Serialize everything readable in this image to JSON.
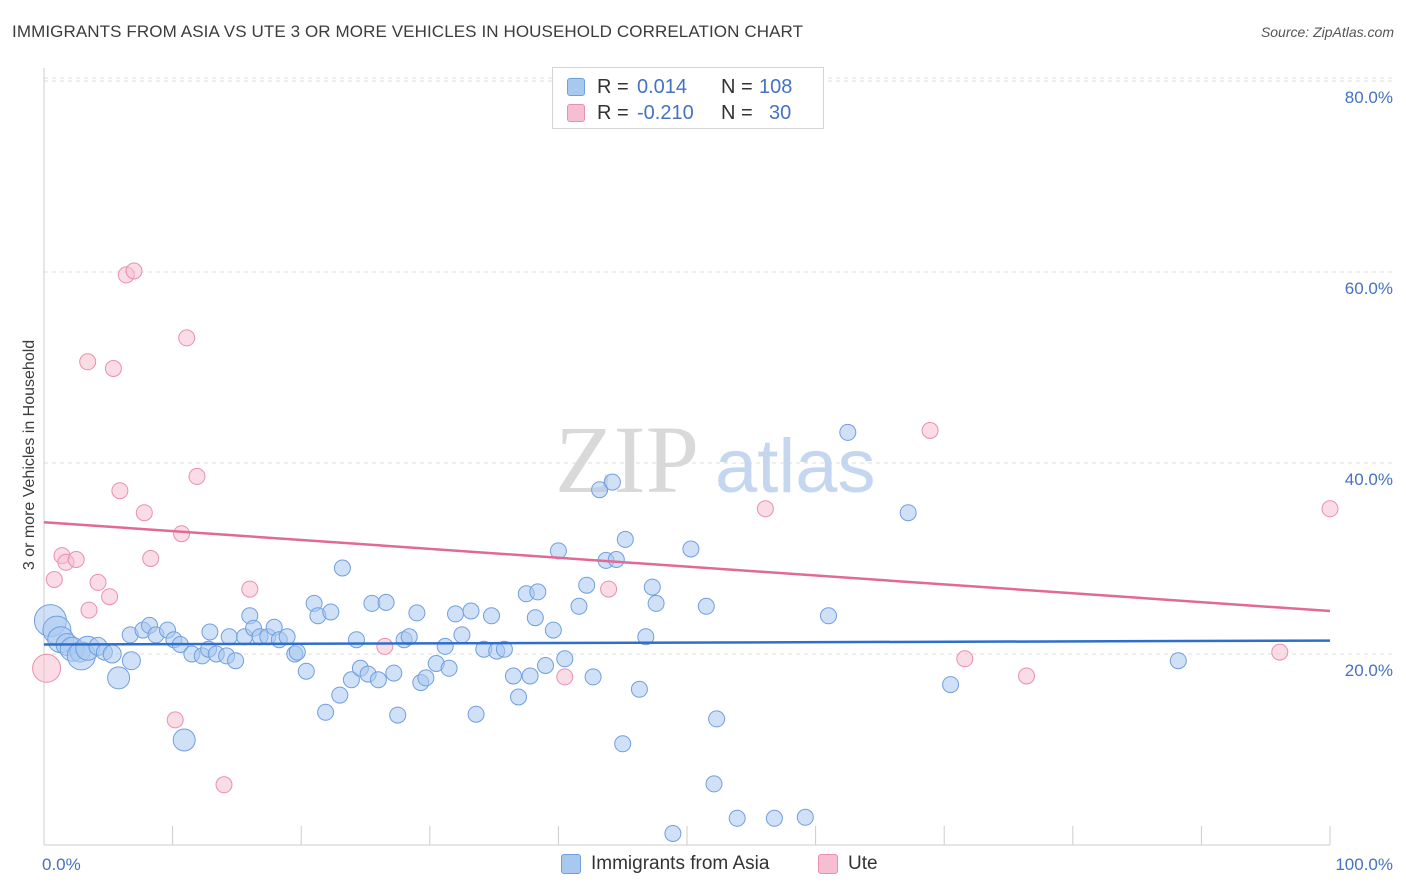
{
  "title": "IMMIGRANTS FROM ASIA VS UTE 3 OR MORE VEHICLES IN HOUSEHOLD CORRELATION CHART",
  "source": "Source: ZipAtlas.com",
  "watermark": {
    "zip": "ZIP",
    "atlas": "atlas"
  },
  "legend": {
    "rows": [
      {
        "r_label": "R =",
        "r_value": "0.014",
        "n_label": "N =",
        "n_value": "108"
      },
      {
        "r_label": "R =",
        "r_value": "-0.210",
        "n_label": "N =",
        "n_value": "30"
      }
    ]
  },
  "bottom_legend": {
    "series1": "Immigrants from Asia",
    "series2": "Ute"
  },
  "colors": {
    "blue_fill": "#a9c8f0",
    "blue_stroke": "#6f9fe0",
    "blue_line": "#2f6fcc",
    "pink_fill": "#f6bfd0",
    "pink_stroke": "#ea8fb0",
    "pink_line": "#e06a95",
    "tick_text": "#4472c4",
    "grid": "#dddddd"
  },
  "chart_data": {
    "type": "scatter",
    "title": "IMMIGRANTS FROM ASIA VS UTE 3 OR MORE VEHICLES IN HOUSEHOLD CORRELATION CHART",
    "xlabel": "",
    "ylabel": "3 or more Vehicles in Household",
    "xlim": [
      0,
      100
    ],
    "ylim": [
      0,
      85
    ],
    "x_ticks": [
      0,
      100
    ],
    "x_tick_labels": [
      "0.0%",
      "100.0%"
    ],
    "y_ticks": [
      20,
      40,
      60,
      80
    ],
    "y_tick_labels": [
      "20.0%",
      "40.0%",
      "60.0%",
      "80.0%"
    ],
    "grid": "horizontal dashed",
    "legend_position": "top-center",
    "series": [
      {
        "name": "Immigrants from Asia",
        "r": 0.014,
        "n": 108,
        "trend": [
          [
            0,
            21.0
          ],
          [
            100,
            21.4
          ]
        ],
        "points": [
          [
            0.5,
            23.5,
            16
          ],
          [
            1.0,
            22.5,
            14
          ],
          [
            1.3,
            21.5,
            13
          ],
          [
            1.8,
            21.0,
            11
          ],
          [
            2.2,
            20.5,
            12
          ],
          [
            2.8,
            20.2,
            10
          ],
          [
            2.9,
            19.8,
            14
          ],
          [
            3.4,
            20.6,
            12
          ],
          [
            4.2,
            20.8,
            9
          ],
          [
            4.7,
            20.2,
            8
          ],
          [
            5.3,
            20.0,
            9
          ],
          [
            5.8,
            17.5,
            11
          ],
          [
            6.8,
            19.3,
            9
          ],
          [
            6.7,
            22.0,
            8
          ],
          [
            7.7,
            22.5,
            8
          ],
          [
            8.2,
            23.0,
            8
          ],
          [
            8.7,
            22.0,
            8
          ],
          [
            9.6,
            22.5,
            8
          ],
          [
            10.1,
            21.5,
            8
          ],
          [
            10.6,
            21.0,
            8
          ],
          [
            10.9,
            11.0,
            11
          ],
          [
            11.5,
            20.0,
            8
          ],
          [
            12.3,
            19.8,
            8
          ],
          [
            12.8,
            20.5,
            8
          ],
          [
            12.9,
            22.3,
            8
          ],
          [
            13.4,
            20.0,
            8
          ],
          [
            14.2,
            19.8,
            8
          ],
          [
            14.4,
            21.8,
            8
          ],
          [
            14.9,
            19.3,
            8
          ],
          [
            15.6,
            21.8,
            8
          ],
          [
            16.0,
            24.0,
            8
          ],
          [
            16.3,
            22.7,
            8
          ],
          [
            16.8,
            21.8,
            8
          ],
          [
            17.4,
            21.8,
            8
          ],
          [
            17.9,
            22.8,
            8
          ],
          [
            18.3,
            21.5,
            8
          ],
          [
            18.9,
            21.8,
            8
          ],
          [
            19.5,
            20.0,
            8
          ],
          [
            19.7,
            20.2,
            8
          ],
          [
            20.4,
            18.2,
            8
          ],
          [
            21.0,
            25.3,
            8
          ],
          [
            21.3,
            24.0,
            8
          ],
          [
            21.9,
            13.9,
            8
          ],
          [
            22.3,
            24.4,
            8
          ],
          [
            23.0,
            15.7,
            8
          ],
          [
            23.2,
            29.0,
            8
          ],
          [
            23.9,
            17.3,
            8
          ],
          [
            24.3,
            21.5,
            8
          ],
          [
            24.6,
            18.5,
            8
          ],
          [
            25.2,
            17.9,
            8
          ],
          [
            25.5,
            25.3,
            8
          ],
          [
            26.0,
            17.3,
            8
          ],
          [
            26.6,
            25.4,
            8
          ],
          [
            27.2,
            18.0,
            8
          ],
          [
            27.5,
            13.6,
            8
          ],
          [
            28.0,
            21.5,
            8
          ],
          [
            28.4,
            21.8,
            8
          ],
          [
            29.0,
            24.3,
            8
          ],
          [
            29.3,
            17.0,
            8
          ],
          [
            29.7,
            17.5,
            8
          ],
          [
            30.5,
            19.0,
            8
          ],
          [
            31.2,
            20.8,
            8
          ],
          [
            31.5,
            18.5,
            8
          ],
          [
            32.0,
            24.2,
            8
          ],
          [
            32.5,
            22.0,
            8
          ],
          [
            33.2,
            24.5,
            8
          ],
          [
            33.6,
            13.7,
            8
          ],
          [
            34.2,
            20.5,
            8
          ],
          [
            34.8,
            24.0,
            8
          ],
          [
            35.2,
            20.3,
            8
          ],
          [
            35.8,
            20.5,
            8
          ],
          [
            36.5,
            17.7,
            8
          ],
          [
            36.9,
            15.5,
            8
          ],
          [
            37.5,
            26.3,
            8
          ],
          [
            37.8,
            17.7,
            8
          ],
          [
            38.2,
            23.8,
            8
          ],
          [
            38.4,
            26.5,
            8
          ],
          [
            39.0,
            18.8,
            8
          ],
          [
            39.6,
            22.5,
            8
          ],
          [
            40.0,
            30.8,
            8
          ],
          [
            40.5,
            19.5,
            8
          ],
          [
            41.6,
            25.0,
            8
          ],
          [
            42.2,
            27.2,
            8
          ],
          [
            42.7,
            17.6,
            8
          ],
          [
            43.2,
            37.2,
            8
          ],
          [
            43.7,
            29.8,
            8
          ],
          [
            44.2,
            38.0,
            8
          ],
          [
            44.5,
            29.9,
            8
          ],
          [
            45.2,
            32.0,
            8
          ],
          [
            45.0,
            10.6,
            8
          ],
          [
            46.8,
            21.8,
            8
          ],
          [
            46.3,
            16.3,
            8
          ],
          [
            47.3,
            27.0,
            8
          ],
          [
            47.6,
            25.3,
            8
          ],
          [
            48.9,
            1.2,
            8
          ],
          [
            50.3,
            31.0,
            8
          ],
          [
            51.5,
            25.0,
            8
          ],
          [
            52.3,
            13.2,
            8
          ],
          [
            52.1,
            6.4,
            8
          ],
          [
            53.9,
            2.8,
            8
          ],
          [
            56.8,
            2.8,
            8
          ],
          [
            59.2,
            2.9,
            8
          ],
          [
            61.0,
            24.0,
            8
          ],
          [
            62.5,
            43.2,
            8
          ],
          [
            67.2,
            34.8,
            8
          ],
          [
            70.5,
            16.8,
            8
          ],
          [
            88.2,
            19.3,
            8
          ]
        ]
      },
      {
        "name": "Ute",
        "r": -0.21,
        "n": 30,
        "trend": [
          [
            0,
            33.8
          ],
          [
            100,
            24.5
          ]
        ],
        "points": [
          [
            0.2,
            18.5,
            14
          ],
          [
            0.8,
            27.8,
            8
          ],
          [
            1.4,
            30.3,
            8
          ],
          [
            1.7,
            29.6,
            8
          ],
          [
            2.5,
            29.9,
            8
          ],
          [
            3.4,
            50.6,
            8
          ],
          [
            3.5,
            24.6,
            8
          ],
          [
            4.2,
            27.5,
            8
          ],
          [
            5.1,
            26.0,
            8
          ],
          [
            5.4,
            49.9,
            8
          ],
          [
            5.9,
            37.1,
            8
          ],
          [
            6.4,
            59.7,
            8
          ],
          [
            7.0,
            60.1,
            8
          ],
          [
            7.8,
            34.8,
            8
          ],
          [
            8.3,
            30.0,
            8
          ],
          [
            10.2,
            13.1,
            8
          ],
          [
            10.7,
            32.6,
            8
          ],
          [
            11.1,
            53.1,
            8
          ],
          [
            11.9,
            38.6,
            8
          ],
          [
            14.0,
            6.3,
            8
          ],
          [
            16.0,
            26.8,
            8
          ],
          [
            26.5,
            20.8,
            8
          ],
          [
            40.5,
            17.6,
            8
          ],
          [
            43.9,
            26.8,
            8
          ],
          [
            56.1,
            35.2,
            8
          ],
          [
            68.9,
            43.4,
            8
          ],
          [
            71.6,
            19.5,
            8
          ],
          [
            76.4,
            17.7,
            8
          ],
          [
            96.1,
            20.2,
            8
          ],
          [
            100.0,
            35.2,
            8
          ]
        ]
      }
    ]
  }
}
